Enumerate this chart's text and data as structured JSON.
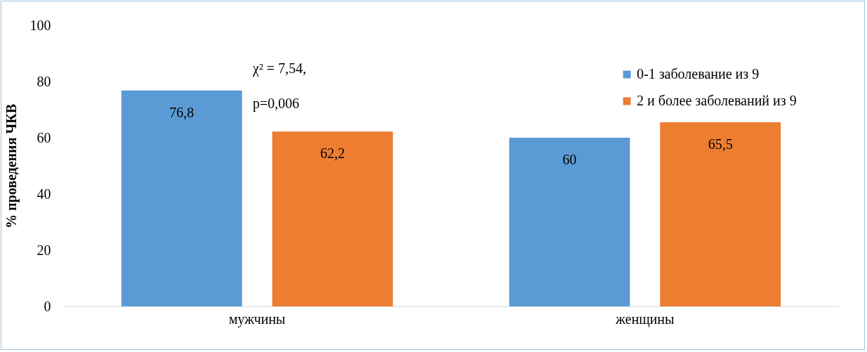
{
  "chart_data": {
    "type": "bar",
    "ylabel": "% проведения ЧКВ",
    "categories": [
      "мужчины",
      "женщины"
    ],
    "series": [
      {
        "name": "0-1 заболевание из 9",
        "color": "#5b9bd5",
        "values": [
          76.8,
          60
        ],
        "value_labels": [
          "76,8",
          "60"
        ]
      },
      {
        "name": "2 и более заболеваний из 9",
        "color": "#ed7d31",
        "values": [
          62.2,
          65.5
        ],
        "value_labels": [
          "62,2",
          "65,5"
        ]
      }
    ],
    "ylim": [
      0,
      100
    ],
    "yticks": [
      0,
      20,
      40,
      60,
      80,
      100
    ],
    "grid": false,
    "legend": "top right",
    "annotations": [
      "χ² = 7,54,",
      "p=0,006"
    ]
  }
}
